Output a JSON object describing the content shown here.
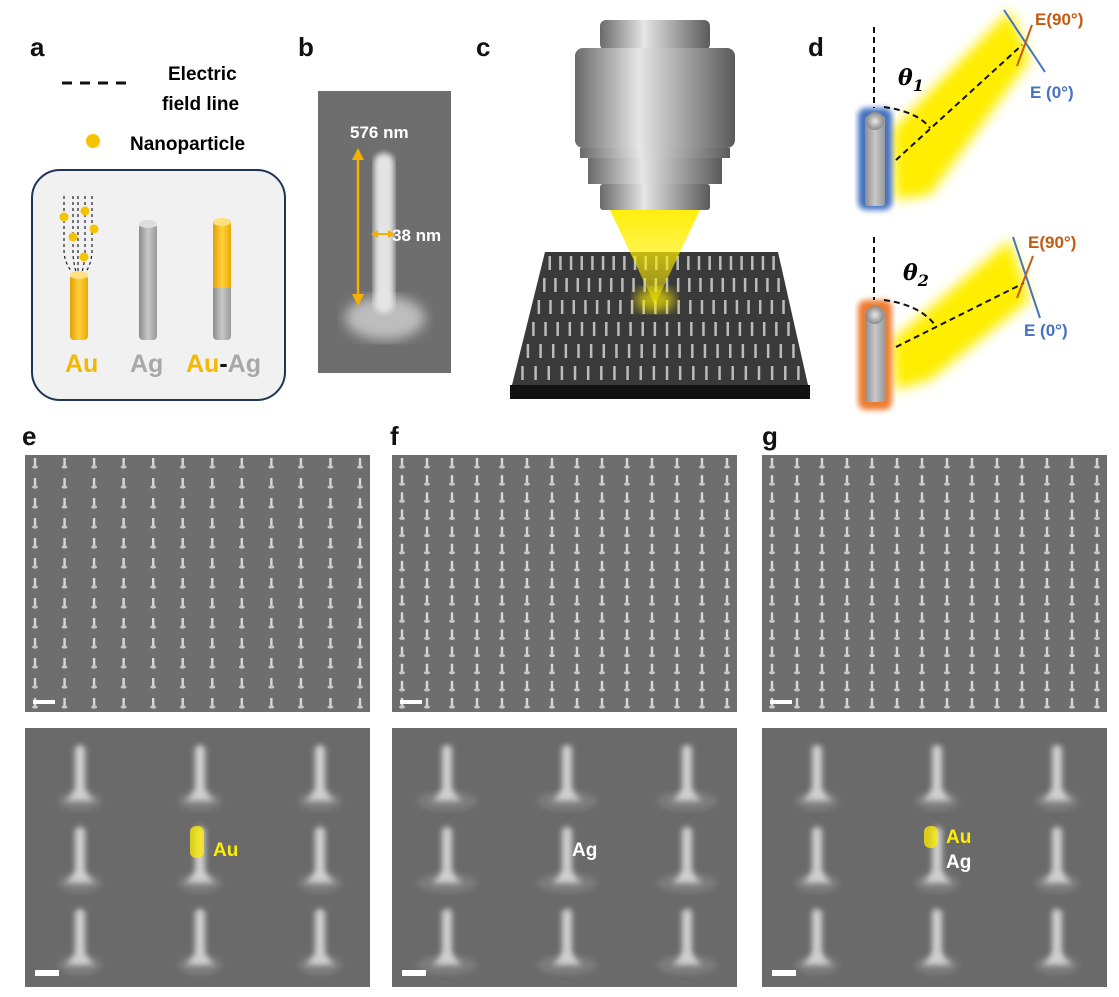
{
  "panels": {
    "a": {
      "label": "a",
      "legend_line": "Electric",
      "legend_line2": "field line",
      "legend_dot": "Nanoparticle",
      "rod_au": "Au",
      "rod_ag": "Ag",
      "rod_auag_au": "Au",
      "rod_auag_dash": "-",
      "rod_auag_ag": "Ag"
    },
    "b": {
      "label": "b",
      "length": "576 nm",
      "width": "38 nm"
    },
    "c": {
      "label": "c"
    },
    "d": {
      "label": "d",
      "theta1": "θ",
      "theta1_sub": "1",
      "theta2": "θ",
      "theta2_sub": "2",
      "e90": "E(90°)",
      "e0": "E (0°)"
    },
    "e": {
      "label": "e",
      "tag": "Au"
    },
    "f": {
      "label": "f",
      "tag": "Ag"
    },
    "g": {
      "label": "g",
      "tag_au": "Au",
      "tag_ag": "Ag"
    }
  },
  "colors": {
    "gold": "#f5b800",
    "silver": "#a8a8a8",
    "blue": "#4472c4",
    "orange": "#c55a11",
    "highlight": "#ffee00",
    "sem_bg": "#6e6e6e"
  }
}
